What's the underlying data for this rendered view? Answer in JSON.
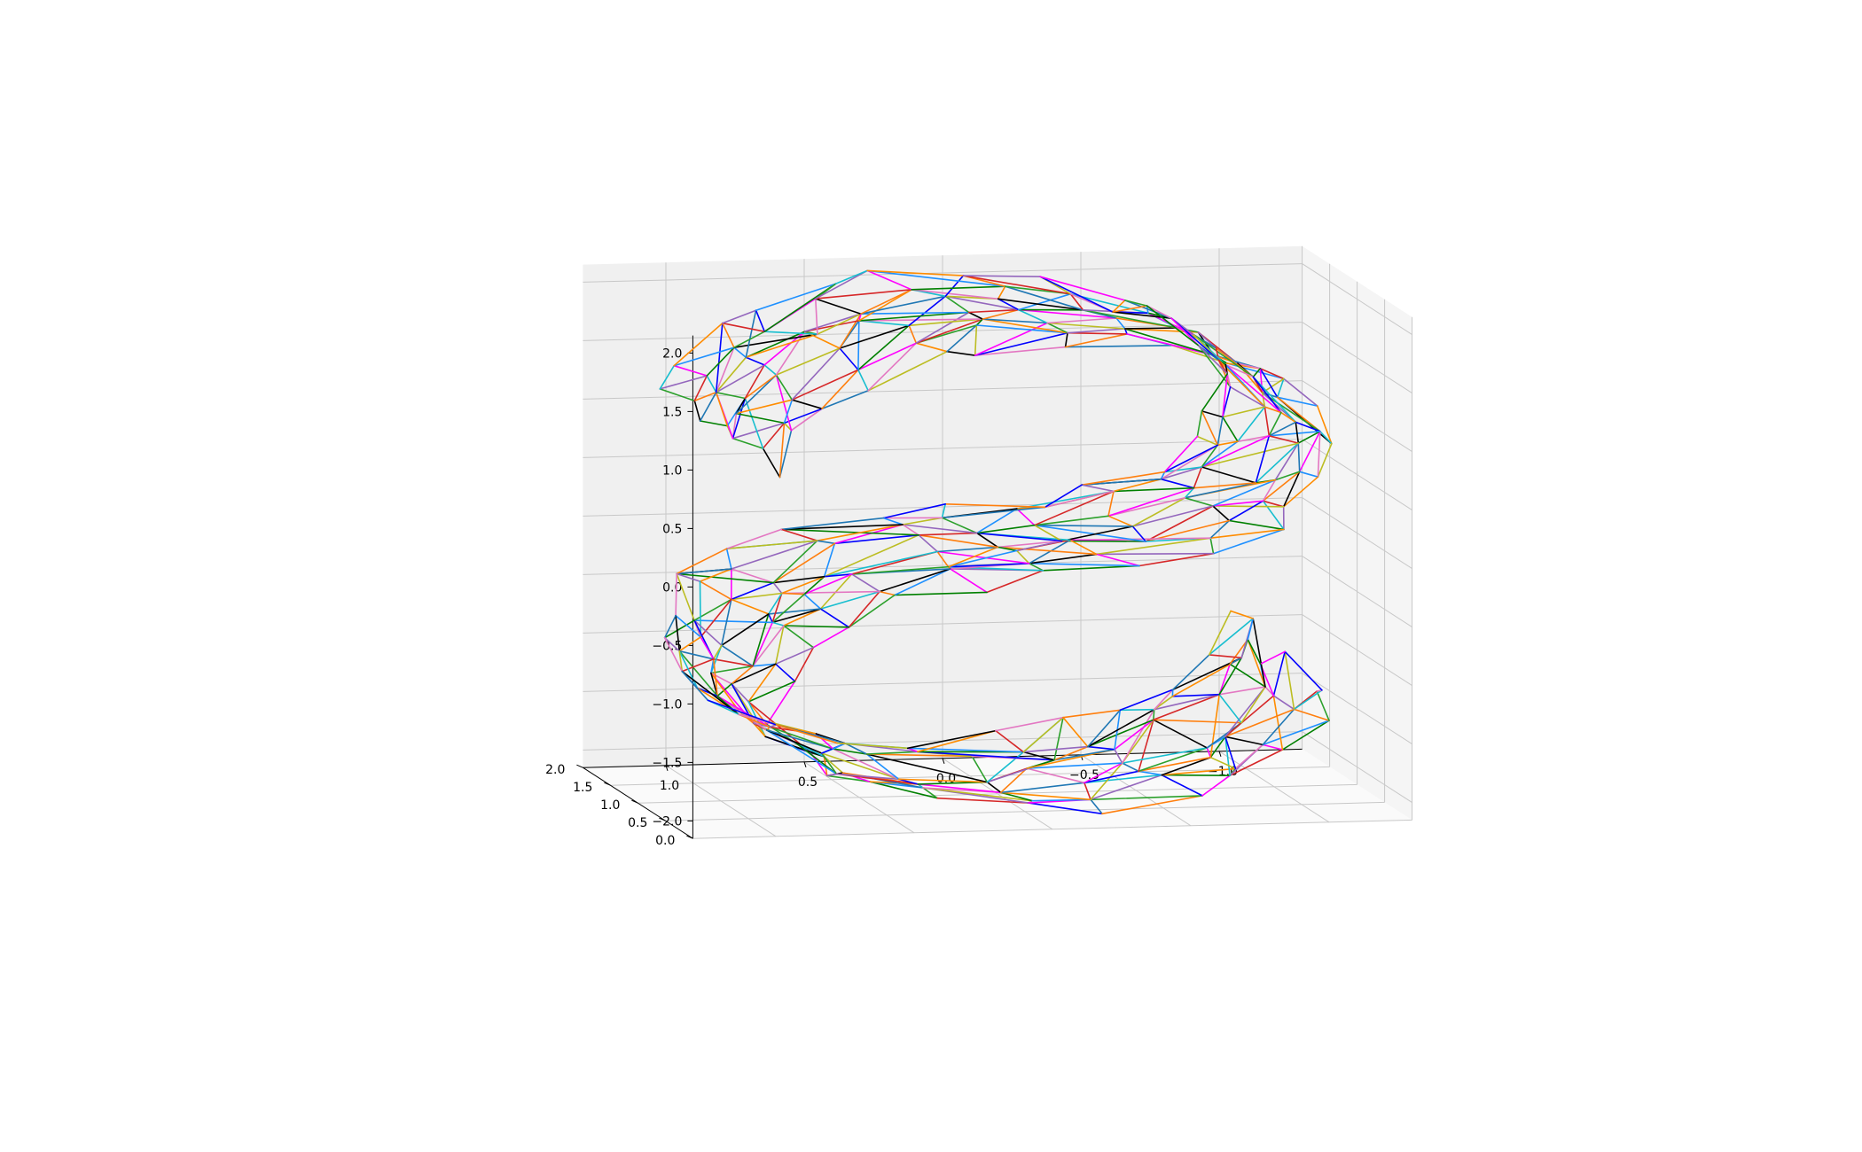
{
  "chart_data": {
    "type": "3d-wireframe",
    "title": "",
    "xlabel": "",
    "ylabel": "",
    "zlabel": "",
    "grid": true,
    "legend": "none",
    "shape": "S-curve",
    "xlim": [
      -1.3,
      1.3
    ],
    "ylim": [
      0.0,
      2.0
    ],
    "zlim": [
      -2.0,
      2.0
    ],
    "x_ticks": [
      "1.0",
      "0.5",
      "0.0",
      "−0.5",
      "−1.0"
    ],
    "y_ticks": [
      "0.0",
      "0.5",
      "1.0",
      "1.5",
      "2.0"
    ],
    "z_ticks": [
      "2.0",
      "1.5",
      "1.0",
      "0.5",
      "0.0",
      "−0.5",
      "−1.0",
      "−1.5",
      "−2.0"
    ],
    "edge_colors": [
      "#000000",
      "#1f77b4",
      "#ff7f0e",
      "#2ca02c",
      "#d62728",
      "#9467bd",
      "#17becf",
      "#bcbd22",
      "#e377c2",
      "#0000ff",
      "#ff00ff",
      "#008000",
      "#1e90ff",
      "#ff8c00"
    ],
    "pane_color": "#f2f2f2",
    "grid_color": "#c8c8c8"
  }
}
